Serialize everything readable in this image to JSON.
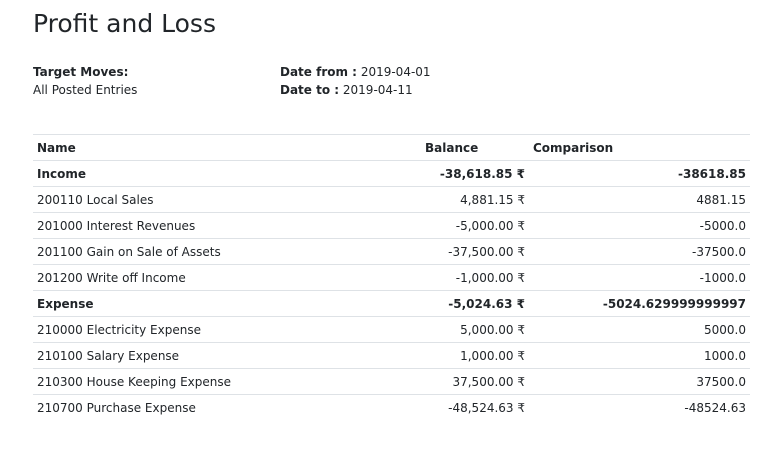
{
  "report": {
    "title": "Profit and Loss",
    "target_moves_label": "Target Moves:",
    "target_moves_value": "All Posted Entries",
    "date_from_label": "Date from :",
    "date_from_value": "2019-04-01",
    "date_to_label": "Date to :",
    "date_to_value": "2019-04-11"
  },
  "table": {
    "headers": {
      "name": "Name",
      "balance": "Balance",
      "comparison": "Comparison"
    },
    "rows": [
      {
        "name": "Income",
        "balance": "-38,618.85 ₹",
        "comparison": "-38618.85"
      },
      {
        "name": "200110 Local Sales",
        "balance": "4,881.15 ₹",
        "comparison": "4881.15"
      },
      {
        "name": "201000 Interest Revenues",
        "balance": "-5,000.00 ₹",
        "comparison": "-5000.0"
      },
      {
        "name": "201100 Gain on Sale of Assets",
        "balance": "-37,500.00 ₹",
        "comparison": "-37500.0"
      },
      {
        "name": "201200 Write off Income",
        "balance": "-1,000.00 ₹",
        "comparison": "-1000.0"
      },
      {
        "name": "Expense",
        "balance": "-5,024.63 ₹",
        "comparison": "-5024.629999999997"
      },
      {
        "name": "210000 Electricity Expense",
        "balance": "5,000.00 ₹",
        "comparison": "5000.0"
      },
      {
        "name": "210100 Salary Expense",
        "balance": "1,000.00 ₹",
        "comparison": "1000.0"
      },
      {
        "name": "210300 House Keeping Expense",
        "balance": "37,500.00 ₹",
        "comparison": "37500.0"
      },
      {
        "name": "210700 Purchase Expense",
        "balance": "-48,524.63 ₹",
        "comparison": "-48524.63"
      }
    ]
  }
}
